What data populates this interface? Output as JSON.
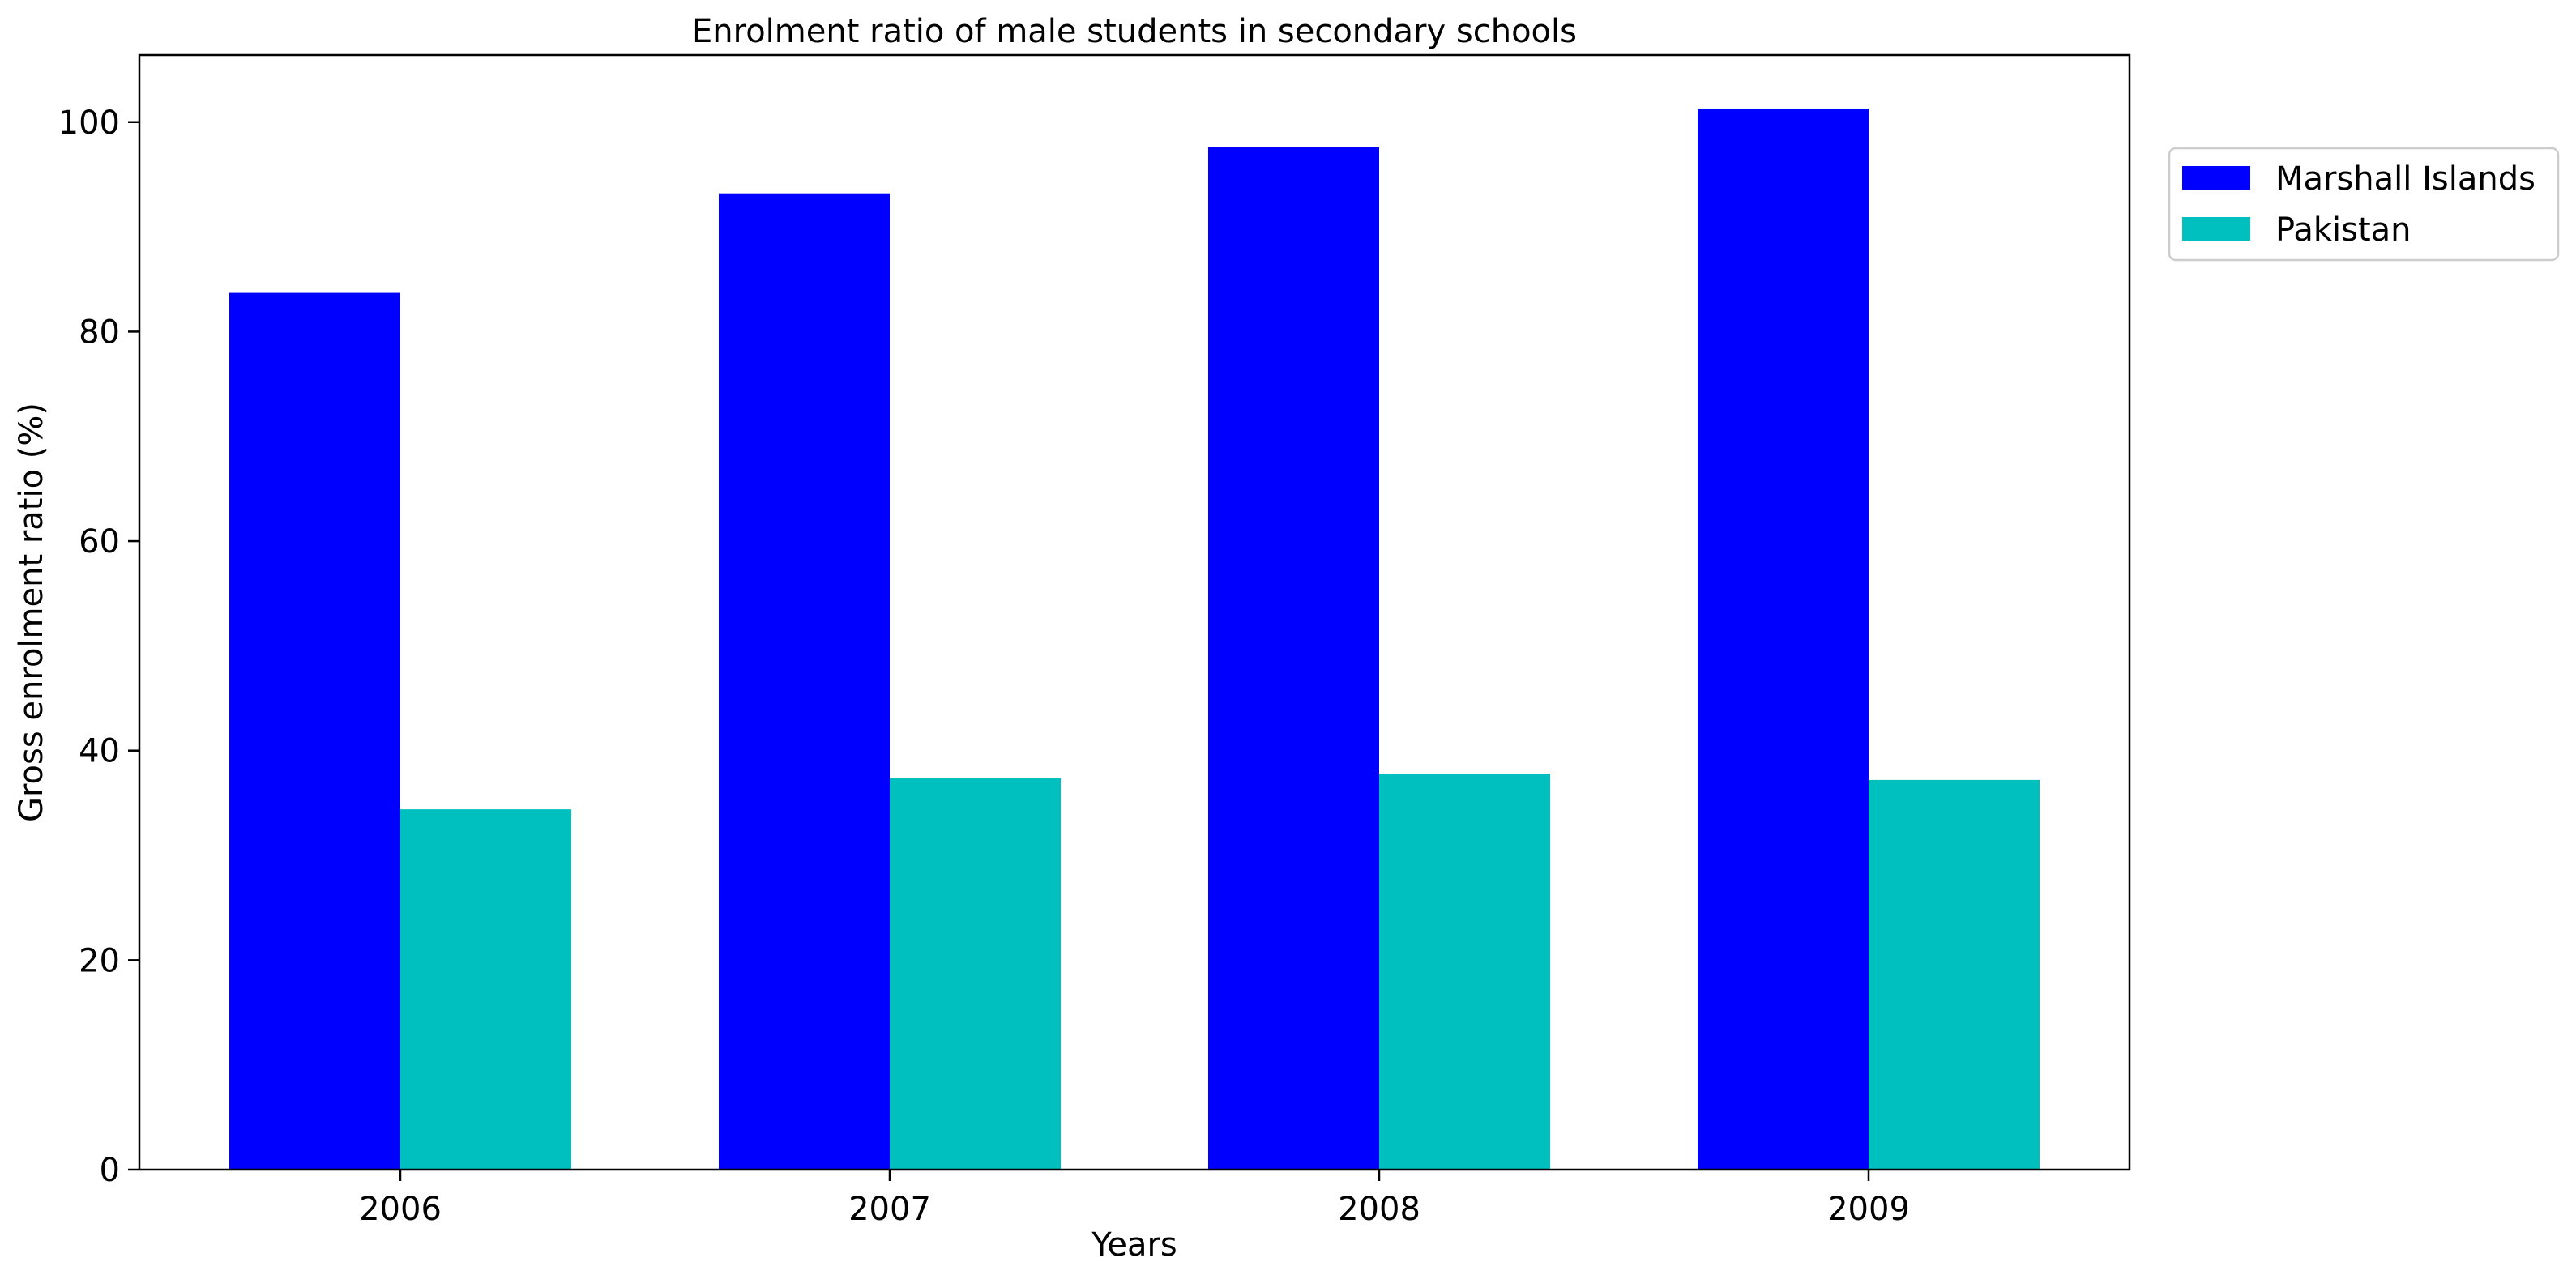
{
  "chart_data": {
    "type": "bar",
    "title": "Enrolment ratio of male students in secondary schools",
    "xlabel": "Years",
    "ylabel": "Gross enrolment ratio (%)",
    "categories": [
      "2006",
      "2007",
      "2008",
      "2009"
    ],
    "series": [
      {
        "name": "Marshall Islands",
        "color": "#0000ff",
        "values": [
          83.7,
          93.2,
          97.6,
          101.3
        ]
      },
      {
        "name": "Pakistan",
        "color": "#00bfbf",
        "values": [
          34.4,
          37.4,
          37.8,
          37.2
        ]
      }
    ],
    "ylim": [
      0,
      106.4
    ],
    "yticks": [
      0,
      20,
      40,
      60,
      80,
      100
    ],
    "grid": false,
    "legend_position": "outside top-right"
  }
}
